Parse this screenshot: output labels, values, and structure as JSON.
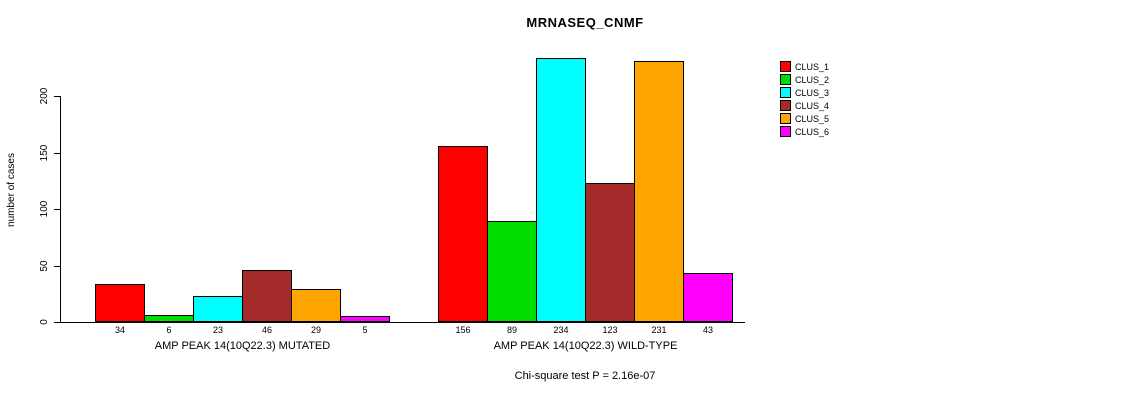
{
  "chart_data": {
    "type": "bar",
    "title": "MRNASEQ_CNMF",
    "ylabel": "number of cases",
    "yticks": [
      0,
      50,
      100,
      150,
      200
    ],
    "ylim": [
      0,
      240
    ],
    "grid": false,
    "legend_position": "right",
    "series": [
      {
        "name": "CLUS_1",
        "color": "#FF0000"
      },
      {
        "name": "CLUS_2",
        "color": "#00DD00"
      },
      {
        "name": "CLUS_3",
        "color": "#00FFFF"
      },
      {
        "name": "CLUS_4",
        "color": "#A52A2A"
      },
      {
        "name": "CLUS_5",
        "color": "#FFA500"
      },
      {
        "name": "CLUS_6",
        "color": "#FF00FF"
      }
    ],
    "groups": [
      {
        "label": "AMP PEAK 14(10Q22.3) MUTATED",
        "values": [
          34,
          6,
          23,
          46,
          29,
          5
        ]
      },
      {
        "label": "AMP PEAK 14(10Q22.3) WILD-TYPE",
        "values": [
          156,
          89,
          234,
          123,
          231,
          43
        ]
      }
    ],
    "footnote": "Chi-square test P = 2.16e-07"
  }
}
